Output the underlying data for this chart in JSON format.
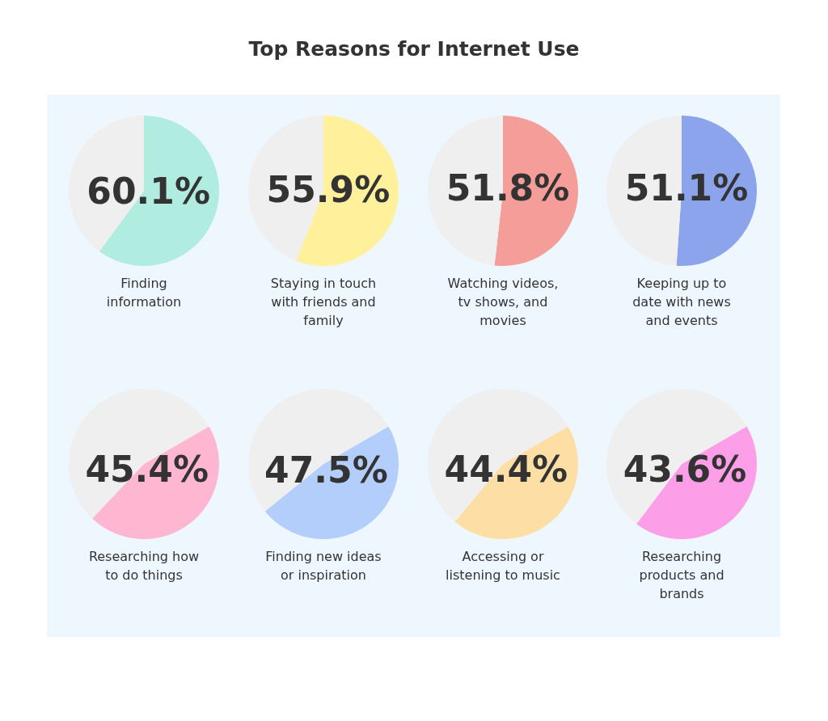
{
  "chart_data": [
    {
      "type": "pie",
      "title": "Top Reasons for Internet Use",
      "categories": [
        "Finding information",
        null
      ],
      "values": [
        60.1,
        39.9
      ],
      "colors": [
        "#b0ecdf",
        "#efefef"
      ],
      "value_labels": [
        "60.1%",
        null
      ]
    },
    {
      "type": "pie",
      "categories": [
        "Staying in touch with friends and family",
        null
      ],
      "values": [
        55.9,
        44.1
      ],
      "colors": [
        "#fff19c",
        "#efefef"
      ],
      "value_labels": [
        "55.9%",
        null
      ]
    },
    {
      "type": "pie",
      "categories": [
        "Watching videos, tv shows, and movies",
        null
      ],
      "values": [
        51.8,
        48.2
      ],
      "colors": [
        "#f59d98",
        "#efefef"
      ],
      "value_labels": [
        "51.8%",
        null
      ]
    },
    {
      "type": "pie",
      "categories": [
        "Keeping up to date with news and events",
        null
      ],
      "values": [
        51.1,
        48.9
      ],
      "colors": [
        "#8ca4ec",
        "#efefef"
      ],
      "value_labels": [
        "51.1%",
        null
      ]
    },
    {
      "type": "pie",
      "categories": [
        "Researching how to do things",
        null
      ],
      "values": [
        45.4,
        54.6
      ],
      "colors": [
        "#ffb6d0",
        "#efefef"
      ],
      "value_labels": [
        "45.4%",
        null
      ]
    },
    {
      "type": "pie",
      "categories": [
        "Finding new ideas or inspiration",
        null
      ],
      "values": [
        47.5,
        52.5
      ],
      "colors": [
        "#b4cefb",
        "#efefef"
      ],
      "value_labels": [
        "47.5%",
        null
      ]
    },
    {
      "type": "pie",
      "categories": [
        "Accessing or listening to music",
        null
      ],
      "values": [
        44.4,
        55.6
      ],
      "colors": [
        "#fddfa6",
        "#efefef"
      ],
      "value_labels": [
        "44.4%",
        null
      ]
    },
    {
      "type": "pie",
      "categories": [
        "Researching products and brands",
        null
      ],
      "values": [
        43.6,
        56.4
      ],
      "colors": [
        "#fd9ee9",
        "#efefef"
      ],
      "value_labels": [
        "43.6%",
        null
      ]
    }
  ]
}
